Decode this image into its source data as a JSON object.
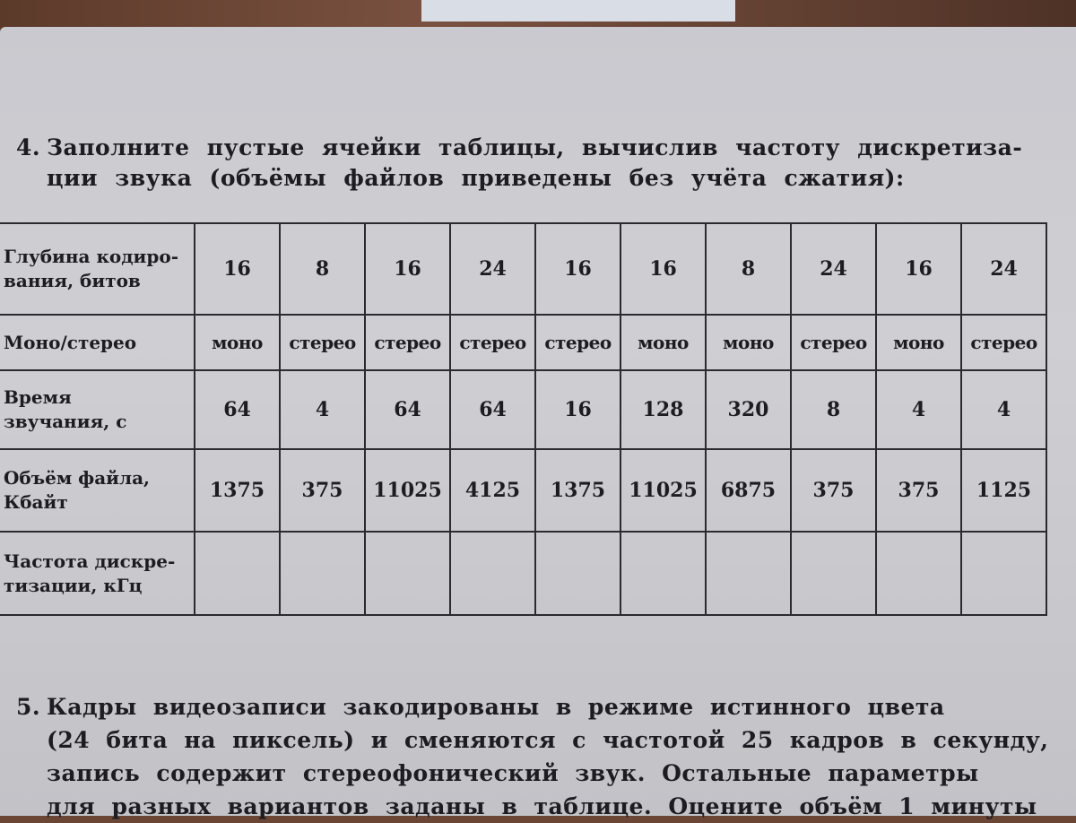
{
  "task4": {
    "number": "4.",
    "line1": "Заполните пустые ячейки таблицы, вычислив частоту дискретиза-",
    "line2": "ции звука (объёмы файлов приведены без учёта сжатия):"
  },
  "table": {
    "rows": [
      {
        "label_lines": [
          "Глубина кодиро-",
          "вания, битов"
        ],
        "cells": [
          "16",
          "8",
          "16",
          "24",
          "16",
          "16",
          "8",
          "24",
          "16",
          "24"
        ]
      },
      {
        "label_lines": [
          "Моно/стерео"
        ],
        "cells": [
          "моно",
          "стерео",
          "стерео",
          "стерео",
          "стерео",
          "моно",
          "моно",
          "стерео",
          "моно",
          "стерео"
        ]
      },
      {
        "label_lines": [
          "Время",
          "звучания, с"
        ],
        "cells": [
          "64",
          "4",
          "64",
          "64",
          "16",
          "128",
          "320",
          "8",
          "4",
          "4"
        ]
      },
      {
        "label_lines": [
          "Объём файла,",
          "Кбайт"
        ],
        "cells": [
          "1375",
          "375",
          "11025",
          "4125",
          "1375",
          "11025",
          "6875",
          "375",
          "375",
          "1125"
        ]
      },
      {
        "label_lines": [
          "Частота дискре-",
          "тизации, кГц"
        ],
        "cells": [
          "",
          "",
          "",
          "",
          "",
          "",
          "",
          "",
          "",
          ""
        ]
      }
    ]
  },
  "task5": {
    "number": "5.",
    "lines": [
      "Кадры видеозаписи закодированы в режиме истинного цвета",
      "(24 бита на пиксель) и сменяются с частотой 25 кадров в секунду,",
      "запись содержит стереофонический звук. Остальные параметры",
      "для разных вариантов заданы в таблице. Оцените объём 1 минуты"
    ]
  }
}
